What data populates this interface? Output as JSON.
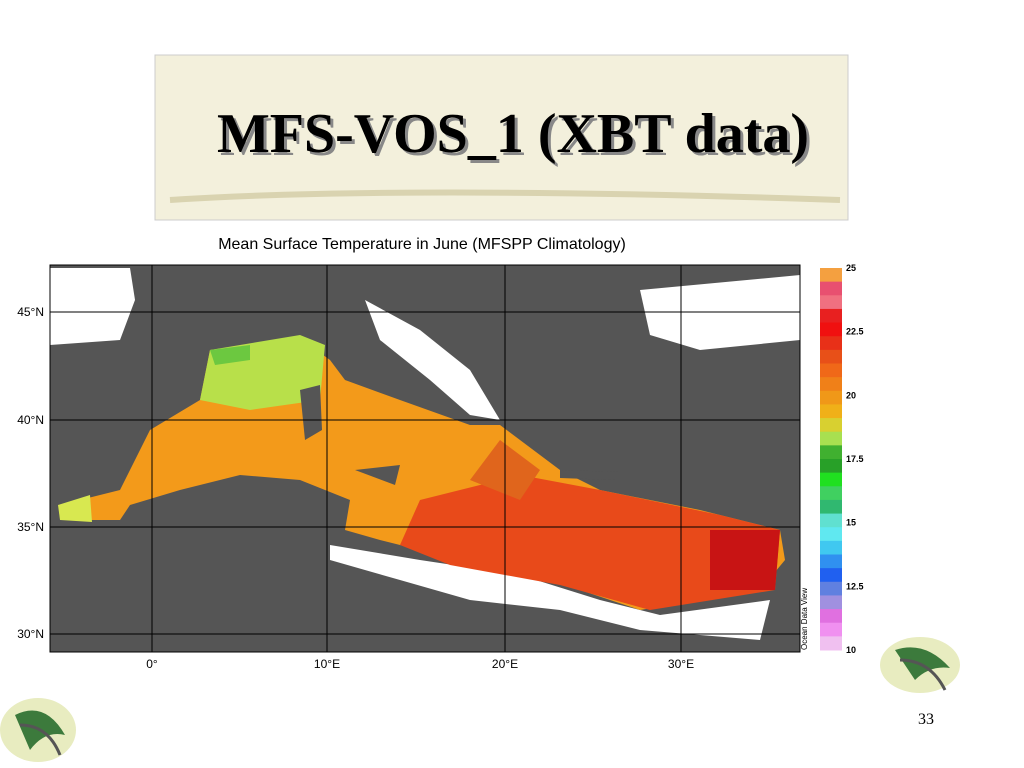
{
  "header": {
    "title": "MFS-VOS_1 (XBT data)"
  },
  "map": {
    "title": "Mean Surface Temperature in June (MFSPP Climatology)",
    "lat_labels": [
      "45°N",
      "40°N",
      "35°N",
      "30°N"
    ],
    "lon_labels": [
      "0°",
      "10°E",
      "20°E",
      "30°E"
    ],
    "colorbar_labels": [
      "25",
      "22.5",
      "20",
      "17.5",
      "15",
      "12.5",
      "10"
    ],
    "credit": "Ocean Data View"
  },
  "page_number": "33"
}
